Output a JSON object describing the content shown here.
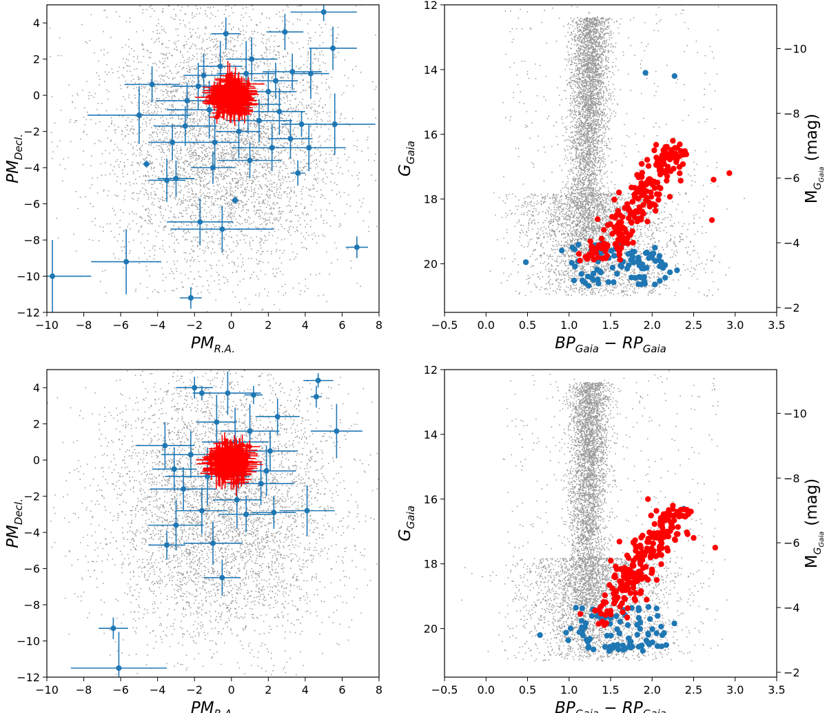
{
  "colors": {
    "field": "#999999",
    "candidates": "#1f77b4",
    "members": "#ff0000",
    "axes": "#000000"
  },
  "chart_data": [
    {
      "type": "scatter",
      "panel": "top-left",
      "xlabel": {
        "main": "PM",
        "sub": "R.A."
      },
      "ylabel": {
        "main": "PM",
        "sub": "Decl."
      },
      "xlim": [
        -10,
        8
      ],
      "ylim": [
        -12,
        5
      ],
      "xticks": [
        "-10",
        "-8",
        "-6",
        "-4",
        "-2",
        "0",
        "2",
        "4",
        "6",
        "8"
      ],
      "yticks": [
        "-12",
        "-10",
        "-8",
        "-6",
        "-4",
        "-2",
        "0",
        "2",
        "4"
      ],
      "grid": false,
      "series": [
        {
          "role": "field",
          "color": "#999999",
          "marker": "small dots",
          "approx_count": 5000,
          "center": [
            -0.5,
            -2.5
          ],
          "spread": [
            3.2,
            3.8
          ]
        },
        {
          "role": "candidates",
          "color": "#1f77b4",
          "marker": "circle with error bars",
          "points": [
            {
              "x": 5.0,
              "y": 4.6,
              "xerr": 1.8,
              "yerr": 0.5
            },
            {
              "x": 2.9,
              "y": 3.5,
              "xerr": 1.0,
              "yerr": 1.0
            },
            {
              "x": -0.3,
              "y": 3.4,
              "xerr": 0.8,
              "yerr": 0.9
            },
            {
              "x": 5.5,
              "y": 2.6,
              "xerr": 1.3,
              "yerr": 1.2
            },
            {
              "x": 3.3,
              "y": 1.3,
              "xerr": 1.6,
              "yerr": 1.0
            },
            {
              "x": -4.3,
              "y": 0.6,
              "xerr": 1.5,
              "yerr": 1.0
            },
            {
              "x": 2.4,
              "y": 0.8,
              "xerr": 1.2,
              "yerr": 1.0
            },
            {
              "x": 4.3,
              "y": 1.2,
              "xerr": 1.0,
              "yerr": 1.4
            },
            {
              "x": -5.0,
              "y": -1.1,
              "xerr": 2.8,
              "yerr": 1.6
            },
            {
              "x": 5.6,
              "y": -1.6,
              "xerr": 2.2,
              "yerr": 1.7
            },
            {
              "x": -2.5,
              "y": -1.7,
              "xerr": 1.7,
              "yerr": 1.1
            },
            {
              "x": 3.8,
              "y": -1.6,
              "xerr": 1.1,
              "yerr": 0.7
            },
            {
              "x": -3.2,
              "y": -2.6,
              "xerr": 1.3,
              "yerr": 1.0
            },
            {
              "x": 2.2,
              "y": -2.9,
              "xerr": 2.2,
              "yerr": 1.3
            },
            {
              "x": 3.2,
              "y": -2.4,
              "xerr": 1.2,
              "yerr": 1.1
            },
            {
              "x": 4.2,
              "y": -2.9,
              "xerr": 2.0,
              "yerr": 1.3
            },
            {
              "x": -4.6,
              "y": -3.8,
              "xerr": 0.2,
              "yerr": 0.2
            },
            {
              "x": -3.5,
              "y": -4.7,
              "xerr": 1.0,
              "yerr": 1.2
            },
            {
              "x": -3.0,
              "y": -4.6,
              "xerr": 1.0,
              "yerr": 1.0
            },
            {
              "x": -1.0,
              "y": -4.0,
              "xerr": 1.2,
              "yerr": 0.9
            },
            {
              "x": 1.0,
              "y": -3.6,
              "xerr": 1.7,
              "yerr": 1.0
            },
            {
              "x": 3.6,
              "y": -4.3,
              "xerr": 0.4,
              "yerr": 0.7
            },
            {
              "x": 0.2,
              "y": -5.8,
              "xerr": 0.2,
              "yerr": 0.2
            },
            {
              "x": -1.7,
              "y": -7.0,
              "xerr": 1.8,
              "yerr": 1.3
            },
            {
              "x": -0.5,
              "y": -7.4,
              "xerr": 2.8,
              "yerr": 1.3
            },
            {
              "x": 6.8,
              "y": -8.4,
              "xerr": 0.6,
              "yerr": 0.6
            },
            {
              "x": -5.7,
              "y": -9.2,
              "xerr": 1.9,
              "yerr": 1.8
            },
            {
              "x": -9.7,
              "y": -10.0,
              "xerr": 2.1,
              "yerr": 2.0
            },
            {
              "x": -2.2,
              "y": -11.2,
              "xerr": 0.6,
              "yerr": 0.6
            },
            {
              "x": 0.8,
              "y": 1.2,
              "xerr": 1.6,
              "yerr": 1.8
            },
            {
              "x": -1.2,
              "y": -0.8,
              "xerr": 2.3,
              "yerr": 1.6
            },
            {
              "x": 1.5,
              "y": -1.4,
              "xerr": 1.8,
              "yerr": 1.2
            },
            {
              "x": -0.6,
              "y": 1.6,
              "xerr": 1.2,
              "yerr": 1.4
            },
            {
              "x": 2.0,
              "y": 0.2,
              "xerr": 1.5,
              "yerr": 1.1
            },
            {
              "x": -1.8,
              "y": 0.5,
              "xerr": 1.4,
              "yerr": 1.3
            },
            {
              "x": 0.4,
              "y": -2.0,
              "xerr": 1.2,
              "yerr": 1.5
            },
            {
              "x": -2.4,
              "y": -0.3,
              "xerr": 1.7,
              "yerr": 1.0
            },
            {
              "x": 1.1,
              "y": 2.0,
              "xerr": 1.4,
              "yerr": 1.2
            },
            {
              "x": 2.6,
              "y": -0.9,
              "xerr": 1.4,
              "yerr": 1.3
            },
            {
              "x": -0.9,
              "y": -2.6,
              "xerr": 1.3,
              "yerr": 1.4
            },
            {
              "x": 0.9,
              "y": -0.5,
              "xerr": 1.8,
              "yerr": 1.6
            },
            {
              "x": -1.5,
              "y": 1.1,
              "xerr": 1.1,
              "yerr": 1.2
            }
          ]
        },
        {
          "role": "members",
          "color": "#ff0000",
          "marker": "circle with error bars",
          "approx_count": 150,
          "center": [
            0.0,
            -0.1
          ],
          "spread": [
            0.45,
            0.4
          ],
          "typical_err": [
            0.7,
            0.6
          ]
        }
      ]
    },
    {
      "type": "scatter",
      "panel": "top-right",
      "xlabel": {
        "parts": [
          "BP",
          "Gaia",
          " − RP",
          "Gaia"
        ]
      },
      "ylabel": {
        "main": "G",
        "sub": "Gaia"
      },
      "y2label": {
        "main": "M",
        "sub": "G",
        "subsub": "Gaia",
        "unit": "(mag)"
      },
      "xlim": [
        -0.5,
        3.5
      ],
      "ylim": [
        21.5,
        12
      ],
      "y2lim": [
        -1.85,
        -11.35
      ],
      "xticks": [
        "-0.5",
        "0.0",
        "0.5",
        "1.0",
        "1.5",
        "2.0",
        "2.5",
        "3.0",
        "3.5"
      ],
      "yticks": [
        "12",
        "14",
        "16",
        "18",
        "20"
      ],
      "y2ticks": [
        "-10",
        "-8",
        "-6",
        "-4",
        "-2"
      ],
      "series": [
        {
          "role": "field",
          "color": "#999999",
          "approx_count": 7000
        },
        {
          "role": "candidates",
          "color": "#1f77b4",
          "approx_count": 95,
          "notable_points": [
            {
              "x": 1.92,
              "y": 14.1
            },
            {
              "x": 2.27,
              "y": 14.2
            },
            {
              "x": 0.48,
              "y": 19.95
            },
            {
              "x": 2.3,
              "y": 20.2
            }
          ]
        },
        {
          "role": "members",
          "color": "#ff0000",
          "approx_count": 220,
          "notable_points": [
            {
              "x": 2.93,
              "y": 17.2
            },
            {
              "x": 2.74,
              "y": 17.4
            },
            {
              "x": 2.72,
              "y": 18.65
            },
            {
              "x": 2.25,
              "y": 16.2
            }
          ]
        }
      ]
    },
    {
      "type": "scatter",
      "panel": "bottom-left",
      "xlabel": {
        "main": "PM",
        "sub": "R.A."
      },
      "ylabel": {
        "main": "PM",
        "sub": "Decl."
      },
      "xlim": [
        -10,
        8
      ],
      "ylim": [
        -12,
        5
      ],
      "xticks": [
        "-10",
        "-8",
        "-6",
        "-4",
        "-2",
        "0",
        "2",
        "4",
        "6",
        "8"
      ],
      "yticks": [
        "-12",
        "-10",
        "-8",
        "-6",
        "-4",
        "-2",
        "0",
        "2",
        "4"
      ],
      "series": [
        {
          "role": "field",
          "color": "#999999",
          "approx_count": 5000,
          "center": [
            -0.5,
            -2.5
          ],
          "spread": [
            3.2,
            3.8
          ]
        },
        {
          "role": "candidates",
          "color": "#1f77b4",
          "points": [
            {
              "x": 4.7,
              "y": 4.4,
              "xerr": 0.8,
              "yerr": 0.4
            },
            {
              "x": 4.6,
              "y": 3.5,
              "xerr": 0.3,
              "yerr": 0.6
            },
            {
              "x": -2.0,
              "y": 4.0,
              "xerr": 1.0,
              "yerr": 0.6
            },
            {
              "x": -1.6,
              "y": 3.7,
              "xerr": 0.5,
              "yerr": 0.4
            },
            {
              "x": -0.2,
              "y": 3.7,
              "xerr": 1.8,
              "yerr": 1.2
            },
            {
              "x": 1.2,
              "y": 3.6,
              "xerr": 0.5,
              "yerr": 0.5
            },
            {
              "x": 5.7,
              "y": 1.6,
              "xerr": 1.4,
              "yerr": 1.5
            },
            {
              "x": -3.6,
              "y": 0.8,
              "xerr": 1.6,
              "yerr": 1.3
            },
            {
              "x": 2.5,
              "y": 2.4,
              "xerr": 1.2,
              "yerr": 1.0
            },
            {
              "x": 4.1,
              "y": -2.8,
              "xerr": 1.5,
              "yerr": 1.4
            },
            {
              "x": 2.3,
              "y": -2.9,
              "xerr": 1.2,
              "yerr": 0.9
            },
            {
              "x": -3.0,
              "y": -3.6,
              "xerr": 1.5,
              "yerr": 1.4
            },
            {
              "x": -3.5,
              "y": -4.7,
              "xerr": 1.0,
              "yerr": 0.8
            },
            {
              "x": -1.0,
              "y": -4.6,
              "xerr": 1.6,
              "yerr": 1.2
            },
            {
              "x": -0.5,
              "y": -6.5,
              "xerr": 1.0,
              "yerr": 1.0
            },
            {
              "x": -6.4,
              "y": -9.3,
              "xerr": 0.8,
              "yerr": 0.6
            },
            {
              "x": -6.1,
              "y": -11.5,
              "xerr": 2.6,
              "yerr": 2.0
            },
            {
              "x": 1.0,
              "y": 1.6,
              "xerr": 1.6,
              "yerr": 1.5
            },
            {
              "x": -1.3,
              "y": -0.9,
              "xerr": 2.3,
              "yerr": 1.6
            },
            {
              "x": 1.6,
              "y": -1.3,
              "xerr": 1.8,
              "yerr": 1.2
            },
            {
              "x": -2.2,
              "y": 0.3,
              "xerr": 1.6,
              "yerr": 1.3
            },
            {
              "x": 0.3,
              "y": -2.2,
              "xerr": 1.3,
              "yerr": 1.6
            },
            {
              "x": 2.1,
              "y": 0.5,
              "xerr": 1.5,
              "yerr": 1.1
            },
            {
              "x": -0.8,
              "y": 2.1,
              "xerr": 1.1,
              "yerr": 1.5
            },
            {
              "x": -2.6,
              "y": -1.6,
              "xerr": 1.8,
              "yerr": 1.2
            },
            {
              "x": 0.8,
              "y": -3.0,
              "xerr": 1.5,
              "yerr": 1.0
            },
            {
              "x": -1.6,
              "y": -2.8,
              "xerr": 1.4,
              "yerr": 1.3
            },
            {
              "x": 1.9,
              "y": -0.6,
              "xerr": 1.6,
              "yerr": 1.4
            },
            {
              "x": -3.1,
              "y": -0.5,
              "xerr": 1.2,
              "yerr": 1.2
            },
            {
              "x": 0.2,
              "y": 1.0,
              "xerr": 1.8,
              "yerr": 1.9
            }
          ]
        },
        {
          "role": "members",
          "color": "#ff0000",
          "approx_count": 150,
          "center": [
            -0.1,
            -0.1
          ],
          "spread": [
            0.45,
            0.4
          ],
          "typical_err": [
            0.7,
            0.6
          ]
        }
      ]
    },
    {
      "type": "scatter",
      "panel": "bottom-right",
      "xlabel": {
        "parts": [
          "BP",
          "Gaia",
          " − RP",
          "Gaia"
        ]
      },
      "ylabel": {
        "main": "G",
        "sub": "Gaia"
      },
      "y2label": {
        "main": "M",
        "sub": "G",
        "subsub": "Gaia",
        "unit": "(mag)"
      },
      "xlim": [
        -0.5,
        3.5
      ],
      "ylim": [
        21.5,
        12
      ],
      "y2lim": [
        -1.85,
        -11.35
      ],
      "xticks": [
        "-0.5",
        "0.0",
        "0.5",
        "1.0",
        "1.5",
        "2.0",
        "2.5",
        "3.0",
        "3.5"
      ],
      "yticks": [
        "12",
        "14",
        "16",
        "18",
        "20"
      ],
      "y2ticks": [
        "-10",
        "-8",
        "-6",
        "-4",
        "-2"
      ],
      "series": [
        {
          "role": "field",
          "color": "#999999",
          "approx_count": 7000
        },
        {
          "role": "candidates",
          "color": "#1f77b4",
          "approx_count": 90,
          "notable_points": [
            {
              "x": 0.65,
              "y": 20.2
            },
            {
              "x": 2.38,
              "y": 16.3
            }
          ]
        },
        {
          "role": "members",
          "color": "#ff0000",
          "approx_count": 220,
          "notable_points": [
            {
              "x": 2.76,
              "y": 17.5
            },
            {
              "x": 2.5,
              "y": 17.2
            },
            {
              "x": 1.95,
              "y": 16.0
            },
            {
              "x": 2.25,
              "y": 16.2
            }
          ]
        }
      ]
    }
  ]
}
